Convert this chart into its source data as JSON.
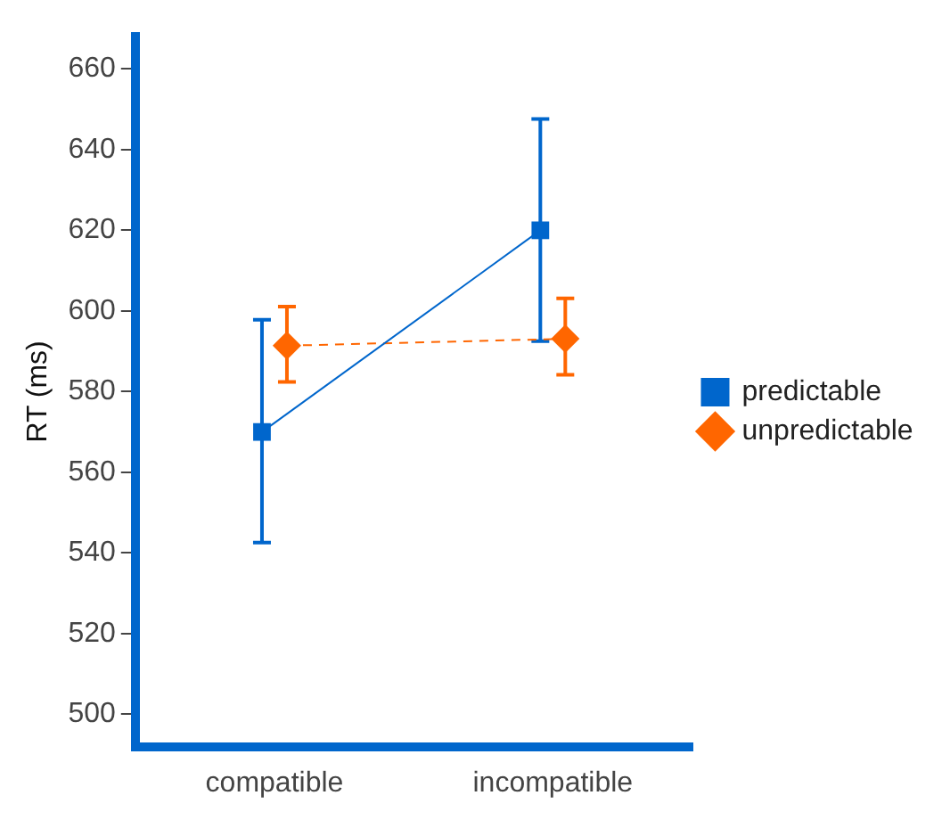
{
  "chart_data": {
    "type": "line",
    "ylabel": "RT (ms)",
    "categories": [
      "compatible",
      "incompatible"
    ],
    "series": [
      {
        "name": "predictable",
        "color": "#0066cc",
        "values": [
          570,
          620
        ],
        "errors": [
          [
            542.6,
            597.8
          ],
          [
            592.5,
            647.6
          ]
        ],
        "marker": "square",
        "line_style": "solid"
      },
      {
        "name": "unpredictable",
        "color": "#ff6600",
        "values": [
          591.4,
          593.1
        ],
        "errors": [
          [
            582.4,
            601.1
          ],
          [
            584.2,
            603.1
          ]
        ],
        "marker": "diamond",
        "line_style": "dashed"
      }
    ],
    "ylim": [
      492,
      668
    ],
    "yticks": [
      500,
      520,
      540,
      560,
      580,
      600,
      620,
      640,
      660
    ],
    "grid": false,
    "legend": "right"
  }
}
